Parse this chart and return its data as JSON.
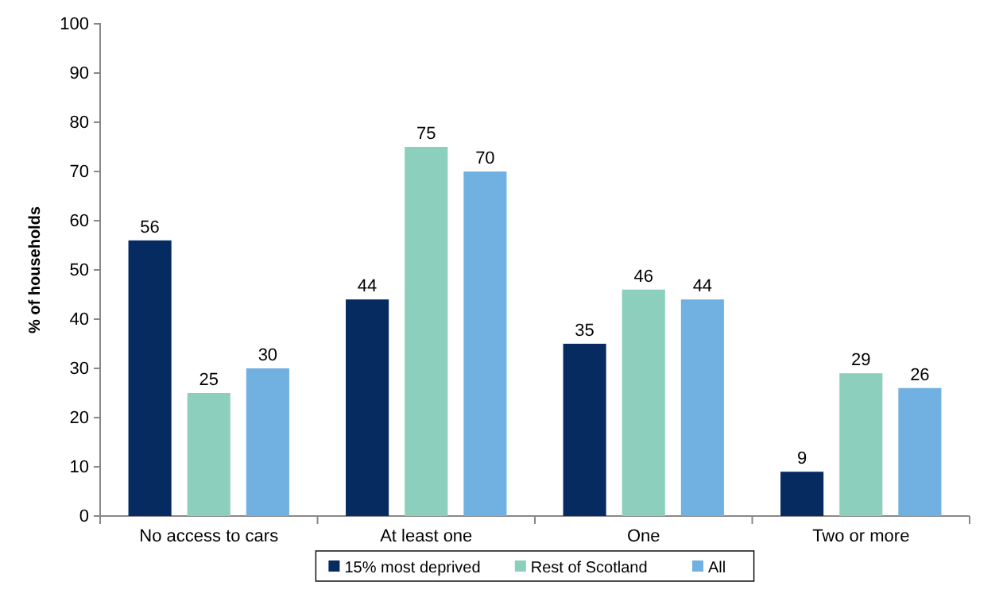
{
  "chart_data": {
    "type": "bar",
    "ylabel": "% of households",
    "categories": [
      "No access to cars",
      "At least one",
      "One",
      "Two or more"
    ],
    "series": [
      {
        "name": "15% most deprived",
        "color": "#062b61",
        "values": [
          56,
          44,
          35,
          9
        ]
      },
      {
        "name": "Rest of Scotland",
        "color": "#8ccfbc",
        "values": [
          25,
          75,
          46,
          29
        ]
      },
      {
        "name": "All",
        "color": "#70b1e2",
        "values": [
          30,
          70,
          44,
          26
        ]
      }
    ],
    "ylim": [
      0,
      100
    ],
    "yticks": [
      0,
      10,
      20,
      30,
      40,
      50,
      60,
      70,
      80,
      90,
      100
    ],
    "grid": false,
    "legend": "bottom",
    "data_labels": true
  }
}
